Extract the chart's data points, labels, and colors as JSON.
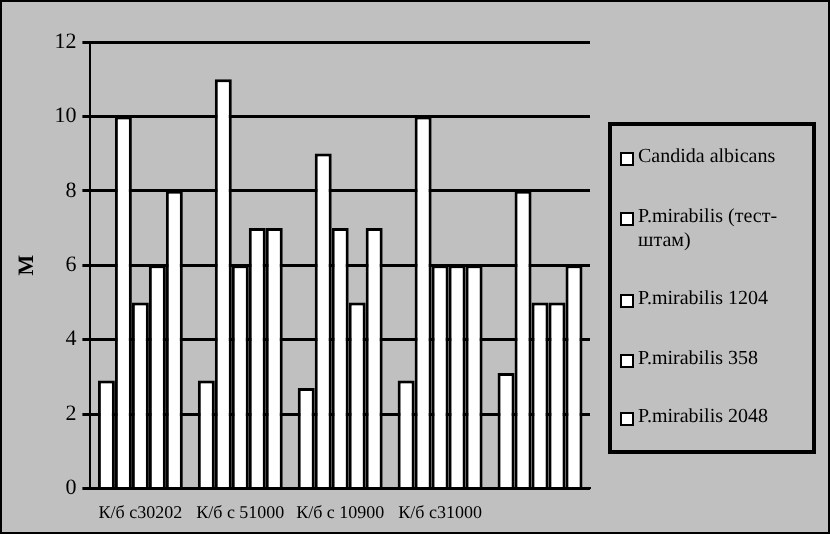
{
  "chart_data": {
    "type": "bar",
    "ylabel": "М",
    "categories": [
      "К/б с30202",
      "К/б с 51000",
      "К/б с 10900",
      "К/б с31000",
      null
    ],
    "series": [
      {
        "name": "Candida albicans",
        "color": "#ffffff",
        "values": [
          2.9,
          2.9,
          2.7,
          2.9,
          3.1
        ]
      },
      {
        "name": "P.mirabilis (тест-штам)",
        "color": "#ffffff",
        "values": [
          10,
          11,
          9,
          10,
          8
        ]
      },
      {
        "name": "P.mirabilis 1204",
        "color": "#ffffff",
        "values": [
          5,
          6,
          7,
          6,
          5
        ]
      },
      {
        "name": "P.mirabilis 358",
        "color": "#ffffff",
        "values": [
          6,
          7,
          5,
          6,
          5
        ]
      },
      {
        "name": "P.mirabilis 2048",
        "color": "#ffffff",
        "values": [
          8,
          7,
          7,
          6,
          6
        ]
      }
    ],
    "ylim": [
      0,
      12
    ],
    "yticks": [
      0,
      2,
      4,
      6,
      8,
      10,
      12
    ],
    "grid": "y",
    "legend": "right"
  }
}
